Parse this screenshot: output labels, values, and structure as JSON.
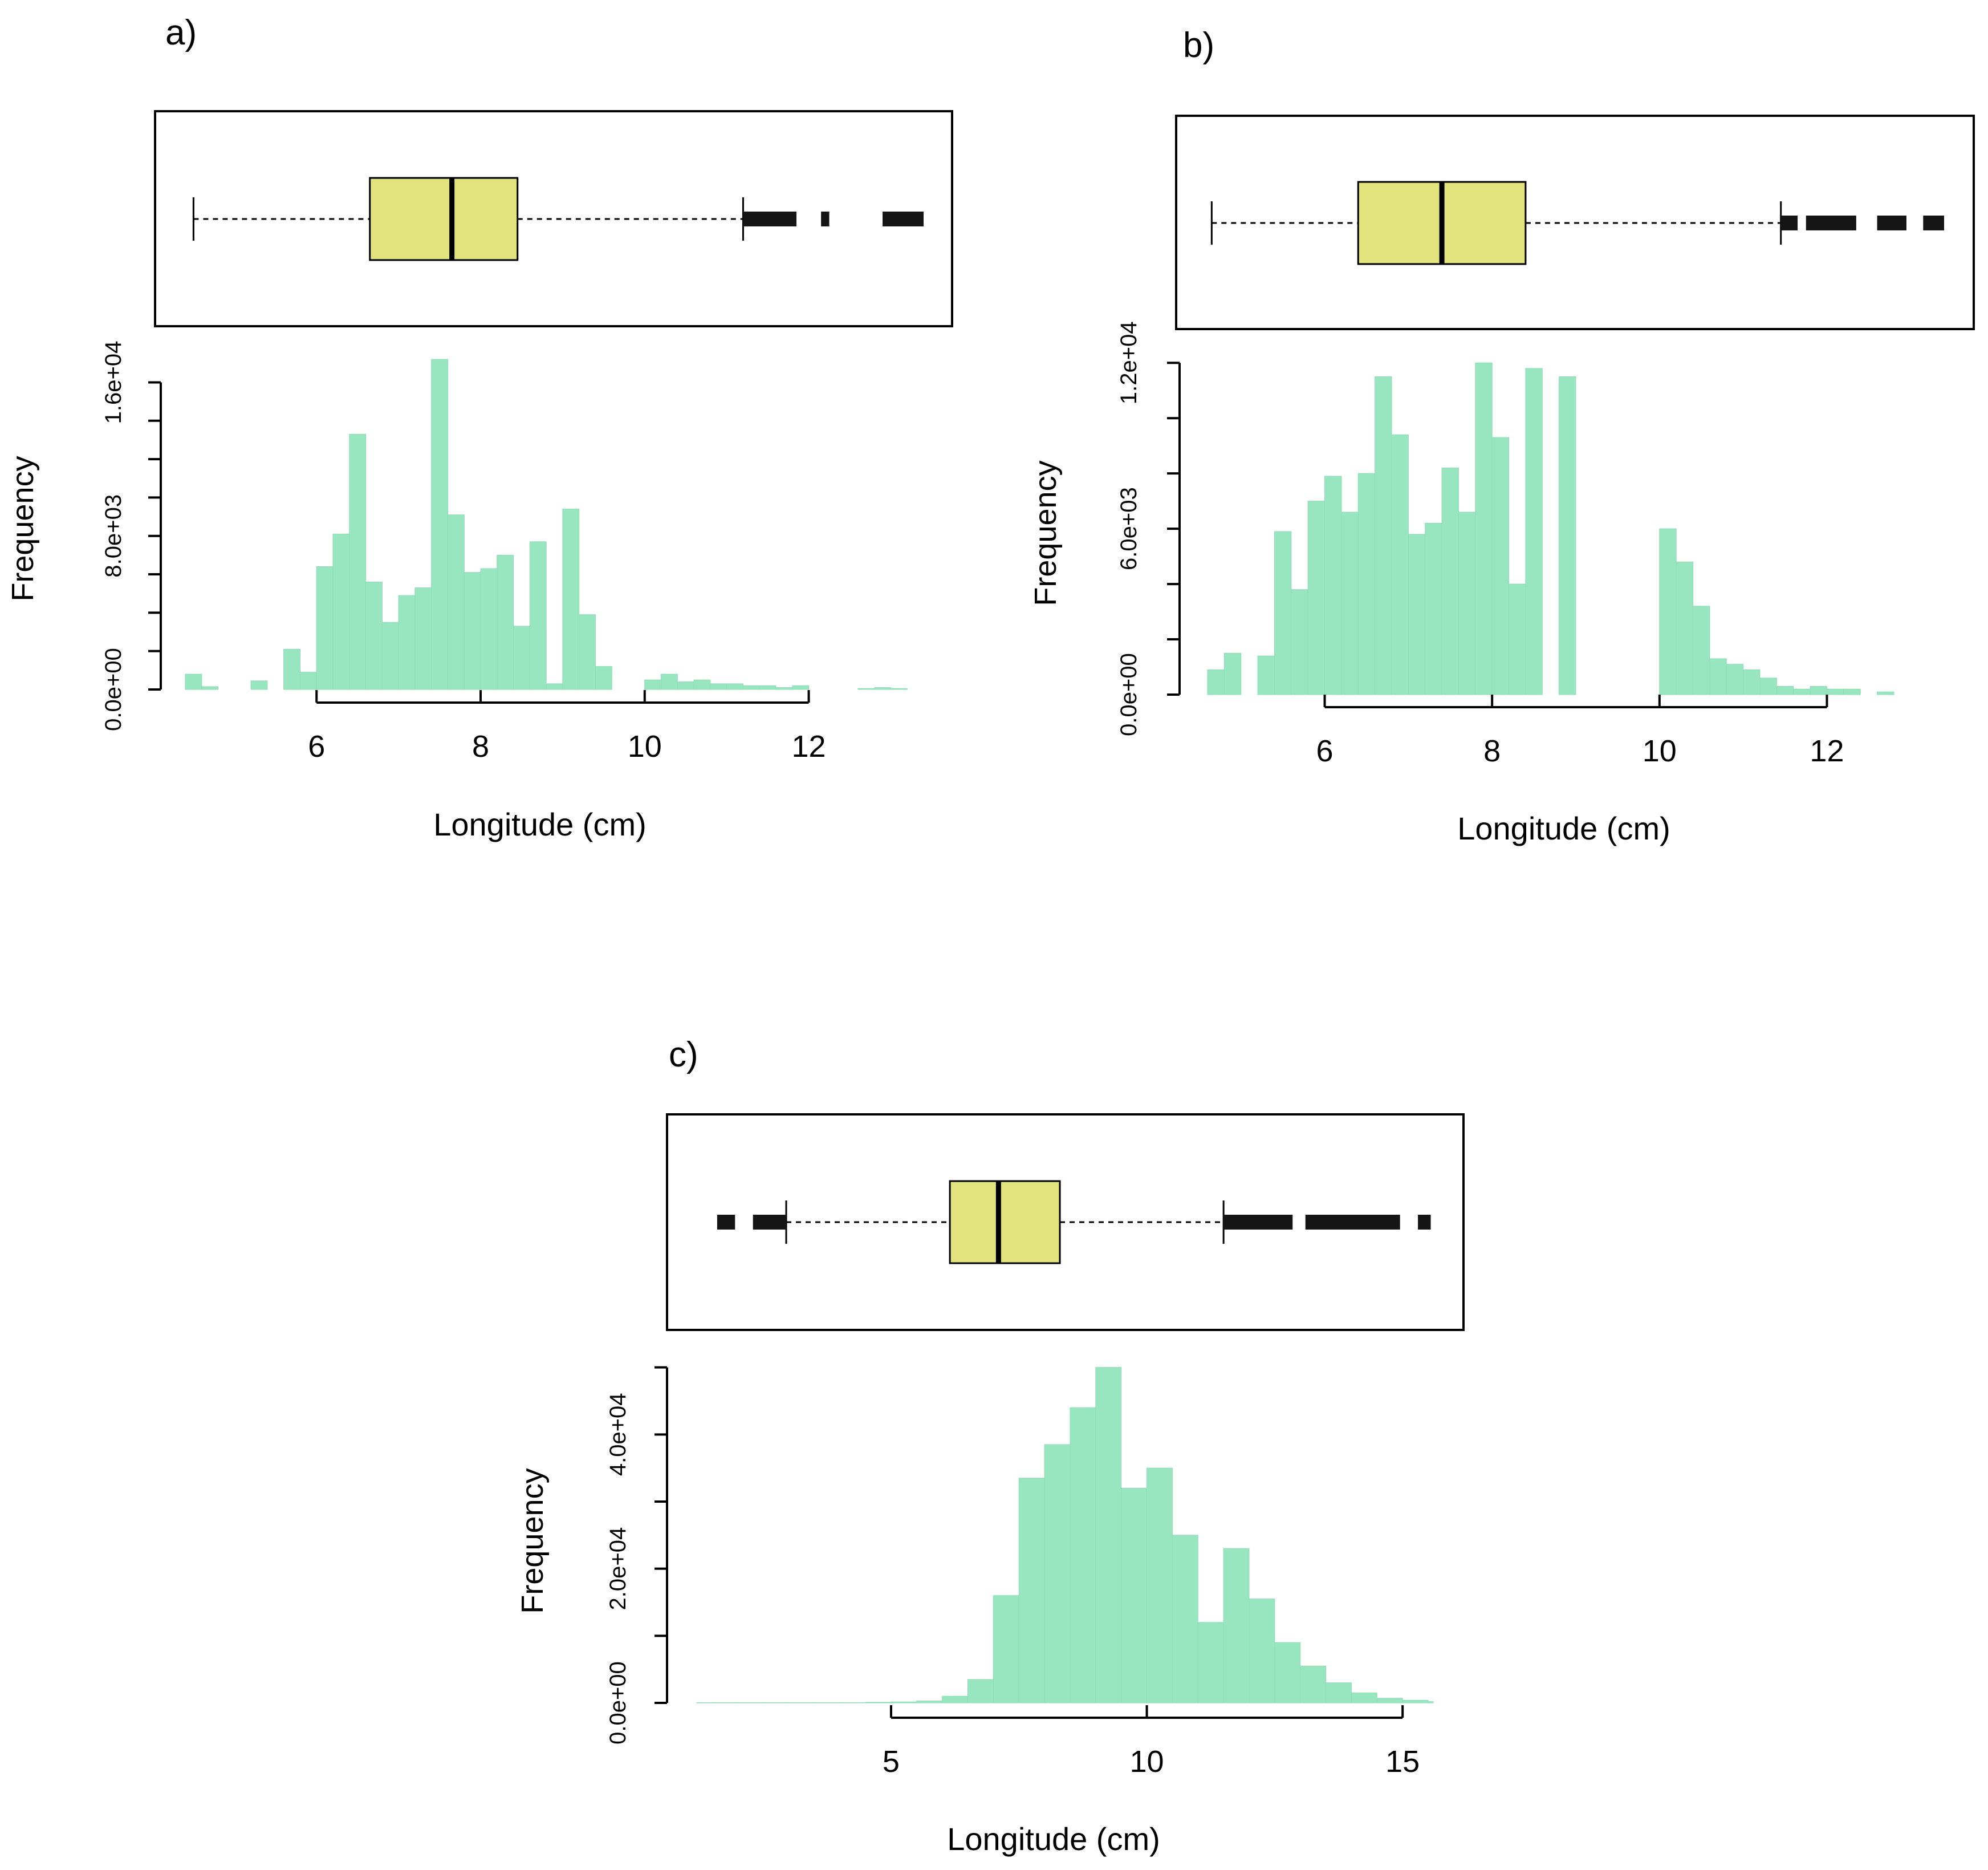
{
  "colors": {
    "histogram_fill": "#98e6c0",
    "histogram_edge": "#8fdcb6",
    "box_fill": "#e3e37d",
    "ink": "#000000"
  },
  "chart_data": [
    {
      "panel": "a)",
      "type": "histogram",
      "xlabel": "Longitude (cm)",
      "ylabel": "Frequency",
      "xlim": [
        4.4,
        13.4
      ],
      "ylim": [
        0,
        17500
      ],
      "xticks": [
        6,
        8,
        10,
        12
      ],
      "xtick_labels": [
        "6",
        "8",
        "10",
        "12"
      ],
      "yticks": [
        0,
        2000,
        4000,
        6000,
        8000,
        10000,
        12000,
        14000,
        16000
      ],
      "ytick_labels": [
        "0.0e+00",
        "",
        "",
        "",
        "8.0e+03",
        "",
        "",
        "",
        "1.6e+04"
      ],
      "bin_start": 4.4,
      "bin_width": 0.2,
      "counts": [
        800,
        150,
        0,
        0,
        450,
        0,
        2100,
        900,
        6400,
        8100,
        13300,
        5600,
        3500,
        4900,
        5300,
        17200,
        9100,
        6100,
        6300,
        7000,
        3300,
        7700,
        300,
        9400,
        3900,
        1200,
        0,
        0,
        500,
        800,
        400,
        500,
        300,
        300,
        200,
        200,
        100,
        200,
        0,
        0,
        0,
        50,
        100,
        50,
        0
      ],
      "boxplot": {
        "whisker_low": 4.5,
        "q1": 6.65,
        "median": 7.65,
        "q3": 8.45,
        "whisker_high": 11.2,
        "outlier_ranges": [
          [
            11.2,
            11.85
          ],
          [
            12.15,
            12.25
          ],
          [
            12.9,
            13.4
          ]
        ]
      }
    },
    {
      "panel": "b)",
      "type": "histogram",
      "xlabel": "Longitude (cm)",
      "ylabel": "Frequency",
      "xlim": [
        4.6,
        13.4
      ],
      "ylim": [
        0,
        12500
      ],
      "xticks": [
        6,
        8,
        10,
        12
      ],
      "xtick_labels": [
        "6",
        "8",
        "10",
        "12"
      ],
      "yticks": [
        0,
        2000,
        4000,
        6000,
        8000,
        10000,
        12000
      ],
      "ytick_labels": [
        "0.0e+00",
        "",
        "",
        "6.0e+03",
        "",
        "",
        "1.2e+04"
      ],
      "bin_start": 4.6,
      "bin_width": 0.2,
      "counts": [
        900,
        1500,
        0,
        1400,
        5900,
        3800,
        7000,
        7900,
        6600,
        8000,
        11500,
        9400,
        5800,
        6200,
        8200,
        6600,
        12000,
        9300,
        4000,
        11800,
        0,
        11500,
        0,
        0,
        0,
        0,
        0,
        6000,
        4800,
        3200,
        1300,
        1100,
        900,
        600,
        300,
        200,
        300,
        200,
        200,
        0,
        100,
        0,
        0,
        0
      ],
      "boxplot": {
        "whisker_low": 4.65,
        "q1": 6.4,
        "median": 7.4,
        "q3": 8.4,
        "whisker_high": 11.45,
        "outlier_ranges": [
          [
            11.45,
            11.65
          ],
          [
            11.75,
            12.35
          ],
          [
            12.6,
            12.95
          ],
          [
            13.15,
            13.4
          ]
        ]
      }
    },
    {
      "panel": "c)",
      "type": "histogram",
      "xlabel": "Longitude (cm)",
      "ylabel": "Frequency",
      "xlim": [
        1.2,
        15.6
      ],
      "ylim": [
        0,
        51500
      ],
      "xticks": [
        5,
        10,
        15
      ],
      "xtick_labels": [
        "5",
        "10",
        "15"
      ],
      "yticks": [
        0,
        10000,
        20000,
        30000,
        40000,
        50000
      ],
      "ytick_labels": [
        "0.0e+00",
        "",
        "2.0e+04",
        "",
        "4.0e+04",
        ""
      ],
      "bin_start": 1.0,
      "bin_width": 0.5,
      "counts": [
        50,
        50,
        50,
        50,
        50,
        50,
        50,
        100,
        150,
        300,
        1000,
        3500,
        16000,
        33500,
        38500,
        44000,
        50000,
        32000,
        35000,
        25000,
        12000,
        23000,
        15500,
        9000,
        5500,
        3000,
        1500,
        700,
        400,
        200
      ],
      "boxplot": {
        "whisker_low": 2.95,
        "q1": 6.15,
        "median": 7.1,
        "q3": 8.3,
        "whisker_high": 11.5,
        "outlier_ranges": [
          [
            1.6,
            1.95
          ],
          [
            2.3,
            2.95
          ],
          [
            11.5,
            12.85
          ],
          [
            13.1,
            14.95
          ],
          [
            15.3,
            15.55
          ]
        ]
      }
    }
  ]
}
